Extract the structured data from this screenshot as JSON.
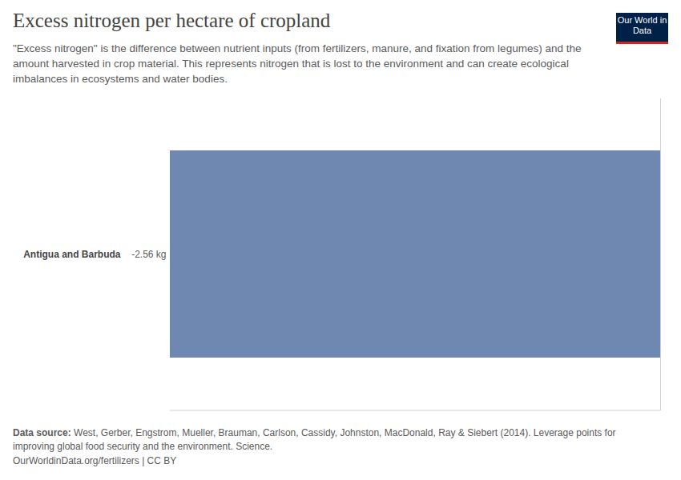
{
  "chart_data": {
    "type": "bar",
    "title": "Excess nitrogen per hectare of cropland",
    "subtitle": "\"Excess nitrogen\" is the difference between nutrient inputs (from fertilizers, manure, and fixation from legumes) and the amount harvested in crop material. This represents nitrogen that is lost to the environment and can create ecological imbalances in ecosystems and water bodies.",
    "logo": "Our World in Data",
    "source_label": "Data source:",
    "source": "West, Gerber, Engstrom, Mueller, Brauman, Carlson, Cassidy, Johnston, MacDonald, Ray & Siebert (2014). Leverage points for improving global food security and the environment. Science.",
    "note": "OurWorldinData.org/fertilizers | CC BY",
    "categories": [
      "Antigua and Barbuda"
    ],
    "values": [
      -2.56
    ],
    "value_labels": [
      "-2.56 kg"
    ],
    "color": "#6f88b2",
    "orientation": "horizontal",
    "data_labels": true,
    "tick_labels": "y",
    "xlim": [
      -2.56,
      0
    ],
    "xticks": [
      0
    ]
  }
}
